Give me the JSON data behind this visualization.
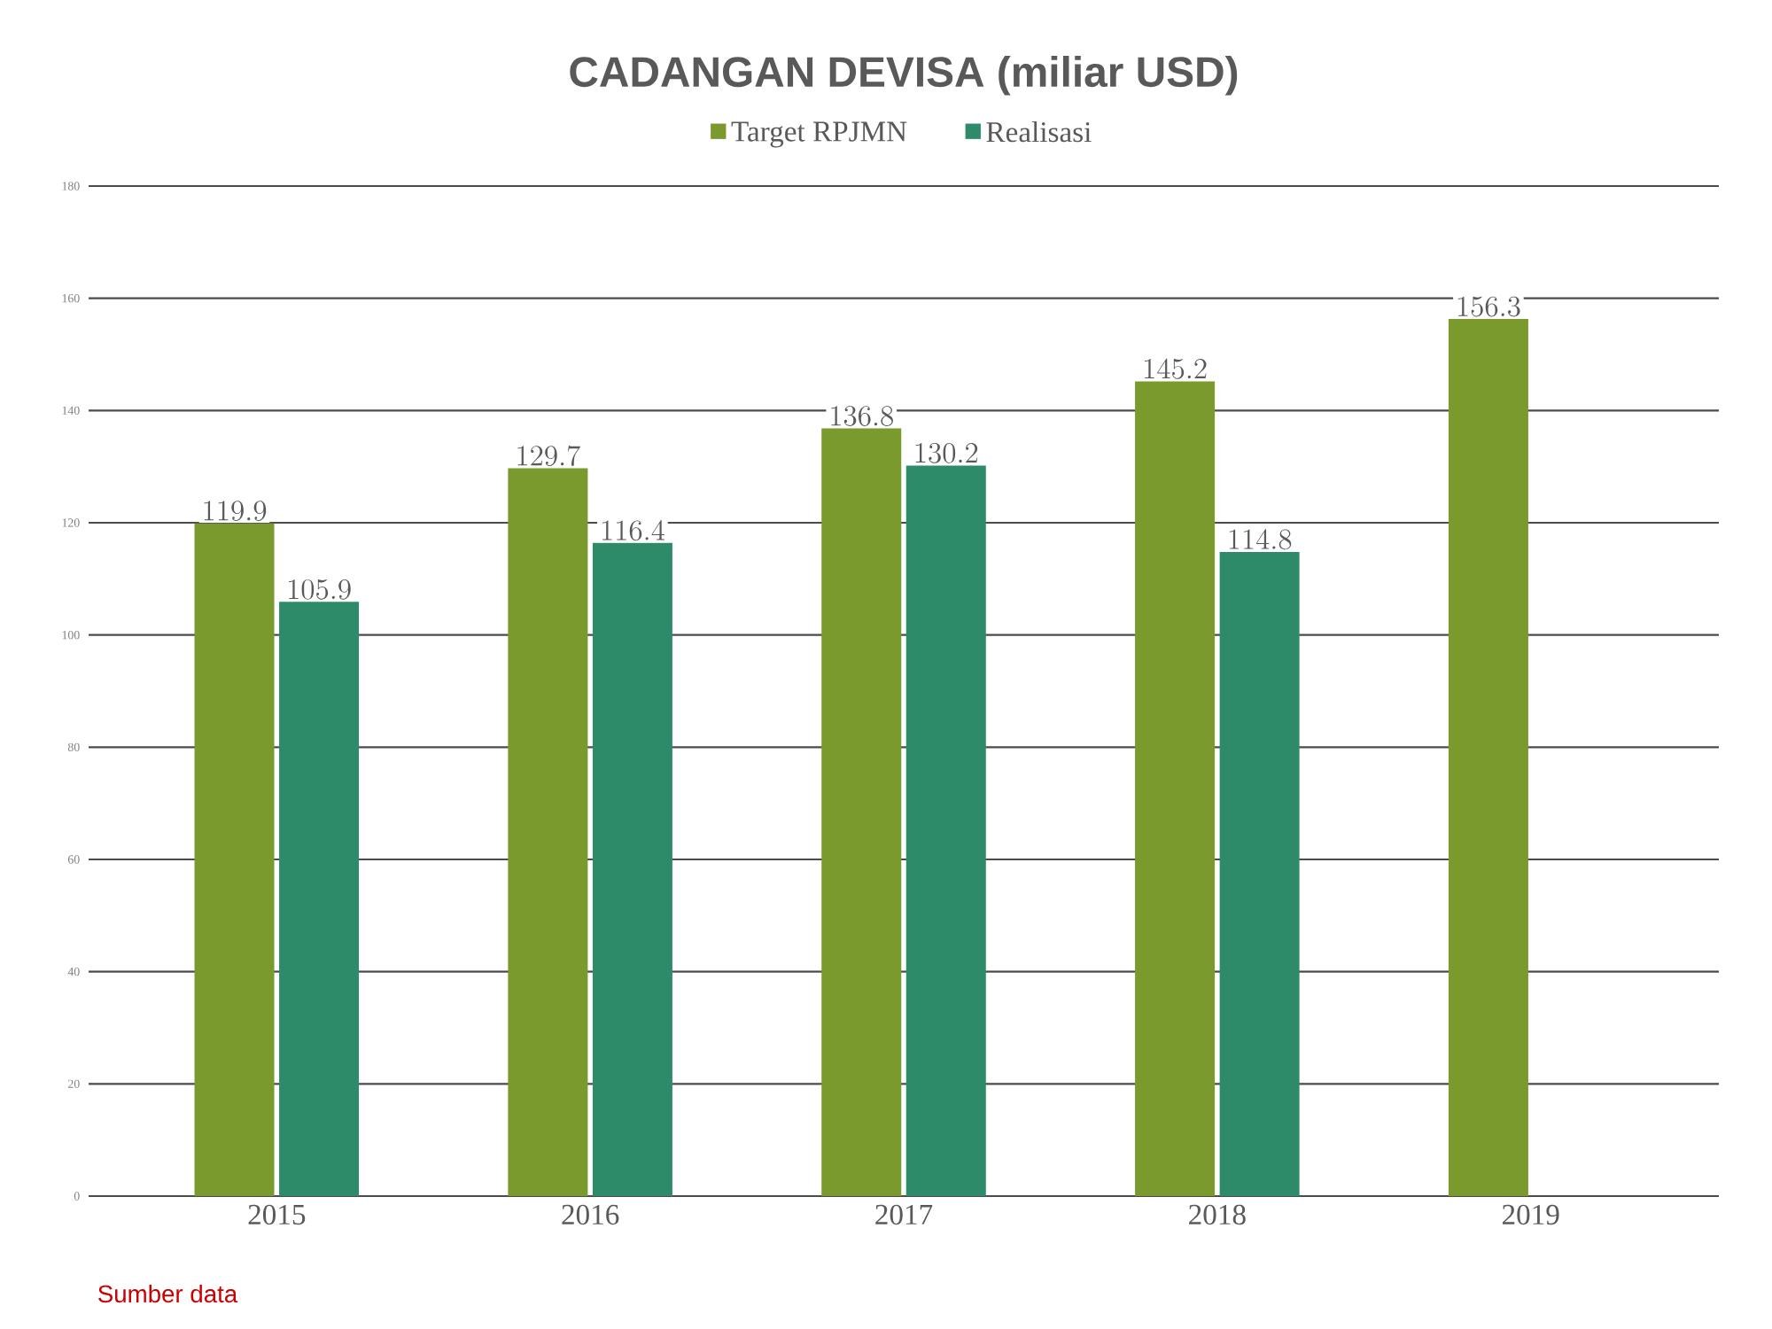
{
  "chart_data": {
    "type": "bar",
    "title": "CADANGAN DEVISA (miliar USD)",
    "categories": [
      "2015",
      "2016",
      "2017",
      "2018",
      "2019"
    ],
    "series": [
      {
        "name": "Target RPJMN",
        "color": "#7a9a2e",
        "values": [
          119.9,
          129.7,
          136.8,
          145.2,
          156.3
        ]
      },
      {
        "name": "Realisasi",
        "color": "#2e8b6a",
        "values": [
          105.9,
          116.4,
          130.2,
          114.8,
          null
        ]
      }
    ],
    "ylim": [
      0,
      180
    ],
    "yticks": [
      0,
      20,
      40,
      60,
      80,
      100,
      120,
      140,
      160,
      180
    ],
    "grid": "y",
    "legend": "top",
    "data_labels": true,
    "annotations": [
      "Sumber data"
    ]
  }
}
